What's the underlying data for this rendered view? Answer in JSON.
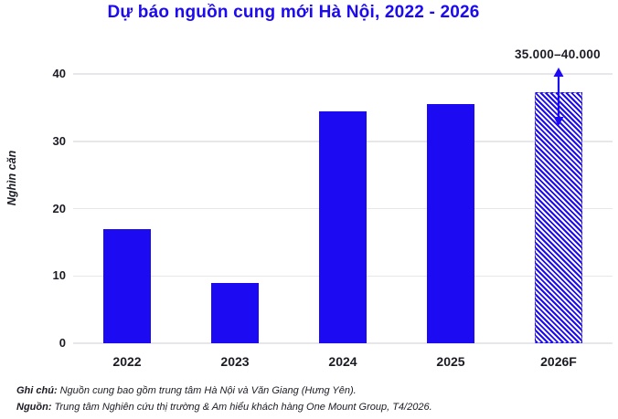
{
  "title": "Dự báo nguồn cung mới Hà Nội, 2022 - 2026",
  "annotation": "35.000–40.000",
  "colors": {
    "accent_blue": "#1c0af0",
    "bar_blue": "#1c0af2",
    "grid_gray": "#e7e7e9",
    "text_dark": "#1b1b24"
  },
  "chart_data": {
    "type": "bar",
    "title": "Dự báo nguồn cung mới Hà Nội, 2022 - 2026",
    "categories": [
      "2022",
      "2023",
      "2024",
      "2025",
      "2026F"
    ],
    "values": [
      17,
      9,
      34.5,
      35.5,
      37.3
    ],
    "forecast_flags": [
      false,
      false,
      false,
      false,
      true
    ],
    "xlabel": "",
    "ylabel": "Nghìn căn",
    "ylim": [
      0,
      40
    ],
    "yticks": [
      0,
      10,
      20,
      30,
      40
    ],
    "grid": "horizontal",
    "legend": "none",
    "annotation": {
      "text": "35.000–40.000",
      "target_category": "2026F",
      "style": "double-headed-vertical-arrow"
    }
  },
  "footnotes": [
    {
      "label": "Ghi chú:",
      "text": "Nguồn cung bao gồm trung tâm Hà Nội và Văn Giang (Hưng Yên)."
    },
    {
      "label": "Nguồn:",
      "text": "Trung tâm Nghiên cứu thị trường & Am hiểu khách hàng One Mount Group, T4/2026."
    }
  ]
}
